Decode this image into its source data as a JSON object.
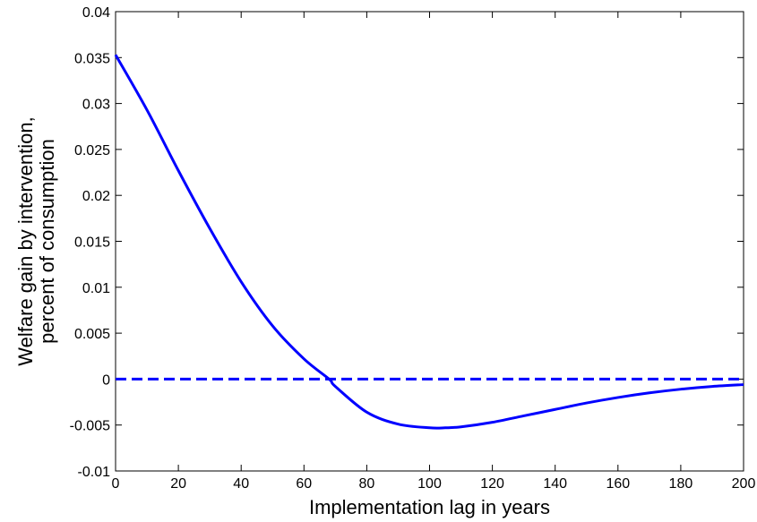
{
  "chart_data": {
    "type": "line",
    "title": "",
    "xlabel": "Implementation lag in years",
    "ylabel_lines": [
      "Welfare gain by intervention,",
      "percent of consumption"
    ],
    "xlim": [
      0,
      200
    ],
    "ylim": [
      -0.01,
      0.04
    ],
    "x_ticks": [
      0,
      20,
      40,
      60,
      80,
      100,
      120,
      140,
      160,
      180,
      200
    ],
    "y_ticks": [
      -0.01,
      -0.005,
      0,
      0.005,
      0.01,
      0.015,
      0.02,
      0.025,
      0.03,
      0.035,
      0.04
    ],
    "x_tick_labels": [
      "0",
      "20",
      "40",
      "60",
      "80",
      "100",
      "120",
      "140",
      "160",
      "180",
      "200"
    ],
    "y_tick_labels": [
      "-0.01",
      "-0.005",
      "0",
      "0.005",
      "0.01",
      "0.015",
      "0.02",
      "0.025",
      "0.03",
      "0.035",
      "0.04"
    ],
    "grid": false,
    "series": [
      {
        "style": "solid",
        "color": "#0000ff",
        "x": [
          0,
          10,
          20,
          30,
          40,
          50,
          60,
          68,
          70,
          80,
          90,
          100,
          105,
          110,
          120,
          130,
          140,
          150,
          160,
          170,
          180,
          190,
          200
        ],
        "y": [
          0.0353,
          0.0293,
          0.0227,
          0.0164,
          0.0106,
          0.0058,
          0.0022,
          0.0,
          -0.0008,
          -0.0036,
          -0.0049,
          -0.0053,
          -0.0053,
          -0.0052,
          -0.0047,
          -0.004,
          -0.0033,
          -0.0026,
          -0.002,
          -0.0015,
          -0.0011,
          -0.0008,
          -0.0006
        ]
      },
      {
        "style": "dashed",
        "color": "#0000ff",
        "x": [
          0,
          200
        ],
        "y": [
          0,
          0
        ]
      }
    ]
  }
}
